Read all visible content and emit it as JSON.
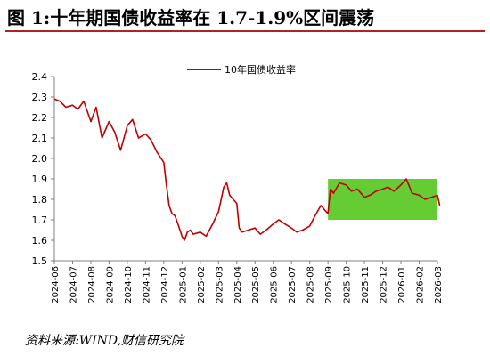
{
  "page": {
    "title": "图 1:十年期国债收益率在 1.7-1.9%区间震荡",
    "source": "资料来源:WIND,财信研究院"
  },
  "colors": {
    "series_line": "#c00000",
    "highlight_box": "#66cc33",
    "title_rule": "#b22222",
    "axis": "#808080"
  },
  "chart_data": {
    "type": "line",
    "title": "",
    "xlabel": "",
    "ylabel": "",
    "ylim": [
      1.5,
      2.4
    ],
    "yticks": [
      "1.5",
      "1.6",
      "1.7",
      "1.8",
      "1.9",
      "2.0",
      "2.1",
      "2.2",
      "2.3",
      "2.4"
    ],
    "xticks": [
      "2024-06",
      "2024-07",
      "2024-08",
      "2024-09",
      "2024-10",
      "2024-11",
      "2024-12",
      "2025-01",
      "2025-02",
      "2025-03",
      "2025-04",
      "2025-05",
      "2025-06",
      "2025-07",
      "2025-08",
      "2025-09",
      "2025-10",
      "2025-11",
      "2025-12",
      "2026-01",
      "2026-02",
      "2026-03"
    ],
    "grid": false,
    "legend_position": "top-center",
    "highlight_band": {
      "x_start": "2025-09",
      "x_end": "2026-03",
      "y_low": 1.7,
      "y_high": 1.9
    },
    "series": [
      {
        "name": "10年国债收益率",
        "x": [
          "2024-06-01",
          "2024-06-10",
          "2024-06-20",
          "2024-07-01",
          "2024-07-10",
          "2024-07-20",
          "2024-08-01",
          "2024-08-10",
          "2024-08-20",
          "2024-09-01",
          "2024-09-10",
          "2024-09-20",
          "2024-10-01",
          "2024-10-10",
          "2024-10-20",
          "2024-11-01",
          "2024-11-10",
          "2024-11-20",
          "2024-12-01",
          "2024-12-05",
          "2024-12-10",
          "2024-12-15",
          "2024-12-20",
          "2024-12-25",
          "2025-01-01",
          "2025-01-05",
          "2025-01-10",
          "2025-01-15",
          "2025-01-20",
          "2025-02-01",
          "2025-02-10",
          "2025-02-20",
          "2025-03-01",
          "2025-03-10",
          "2025-03-15",
          "2025-03-20",
          "2025-04-01",
          "2025-04-05",
          "2025-04-10",
          "2025-04-20",
          "2025-05-01",
          "2025-05-10",
          "2025-05-20",
          "2025-06-01",
          "2025-06-10",
          "2025-06-20",
          "2025-07-01",
          "2025-07-10",
          "2025-07-20",
          "2025-08-01",
          "2025-08-10",
          "2025-08-20",
          "2025-09-01",
          "2025-09-05",
          "2025-09-10",
          "2025-09-20",
          "2025-10-01",
          "2025-10-10",
          "2025-10-20",
          "2025-11-01",
          "2025-11-10",
          "2025-11-20",
          "2025-12-01",
          "2025-12-10",
          "2025-12-20",
          "2026-01-01",
          "2026-01-10",
          "2026-01-20",
          "2026-02-01",
          "2026-02-10",
          "2026-02-20",
          "2026-03-01",
          "2026-03-05"
        ],
        "values": [
          2.29,
          2.28,
          2.25,
          2.26,
          2.24,
          2.28,
          2.18,
          2.25,
          2.1,
          2.18,
          2.13,
          2.04,
          2.16,
          2.19,
          2.1,
          2.12,
          2.09,
          2.03,
          1.98,
          1.88,
          1.77,
          1.73,
          1.72,
          1.68,
          1.62,
          1.6,
          1.64,
          1.65,
          1.63,
          1.64,
          1.62,
          1.68,
          1.74,
          1.86,
          1.88,
          1.82,
          1.78,
          1.66,
          1.64,
          1.65,
          1.66,
          1.63,
          1.65,
          1.68,
          1.7,
          1.68,
          1.66,
          1.64,
          1.65,
          1.67,
          1.72,
          1.77,
          1.73,
          1.85,
          1.83,
          1.88,
          1.87,
          1.84,
          1.85,
          1.81,
          1.82,
          1.84,
          1.85,
          1.86,
          1.84,
          1.87,
          1.9,
          1.83,
          1.82,
          1.8,
          1.81,
          1.82,
          1.77
        ]
      }
    ]
  }
}
